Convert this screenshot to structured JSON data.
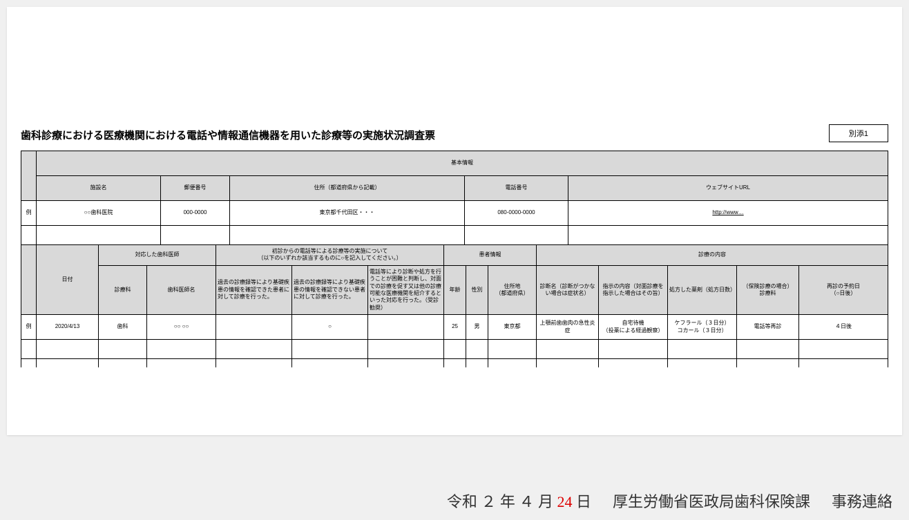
{
  "doc": {
    "title": "歯科診療における医療機関における電話や情報通信機器を用いた診療等の実施状況調査票",
    "annex": "別添1",
    "example_label": "例"
  },
  "basic": {
    "group_header": "基本情報",
    "cols": {
      "facility": "施設名",
      "postal": "郵便番号",
      "address": "住所（都道府県から記載）",
      "phone": "電話番号",
      "url": "ウェブサイトURL"
    },
    "example": {
      "facility": "○○歯科医院",
      "postal": "000-0000",
      "address": "東京都千代田区・・・",
      "phone": "080-0000-0000",
      "url": "http://www…"
    }
  },
  "detail": {
    "groups": {
      "dentist": "対応した歯科医師",
      "initial": "初診からの電話等による診療等の実施について\n（以下のいずれか該当するものに○を記入してください。）",
      "patient": "患者情報",
      "content": "診療の内容"
    },
    "cols": {
      "date": "日付",
      "department": "診療科",
      "doctor_name": "歯科医師名",
      "init1": "過去の診療録等により基礎疾患の情報を確認できた患者に対して診療を行った。",
      "init2": "過去の診療録等により基礎疾患の情報を確認できない患者に対して診療を行った。",
      "init3": "電話等により診断や処方を行うことが困難と判断し、対面での診療を促す又は他の診療可能な医療機関を紹介するといった対応を行った。（受診勧奨）",
      "age": "年齢",
      "sex": "性別",
      "residence": "住所地\n（都道府県）",
      "diagnosis": "診断名（診断がつかない場合は症状名）",
      "instruction": "指示の内容（対面診療を指示した場合はその旨）",
      "prescription": "処方した薬剤（処方日数）",
      "insurance": "（保険診療の場合）\n診療料",
      "revisit": "再診の予約日\n（○日後）"
    },
    "example": {
      "date": "2020/4/13",
      "department": "歯科",
      "doctor_name": "○○ ○○",
      "init1": "",
      "init2": "○",
      "init3": "",
      "age": "25",
      "sex": "男",
      "residence": "東京都",
      "diagnosis": "上顎前歯歯肉の急性炎症",
      "instruction": "自宅待機\n（投薬による経過観察）",
      "prescription": "ケフラール（３日分）\nコカール（３日分）",
      "insurance": "電話等再診",
      "revisit": "４日後"
    }
  },
  "footer": {
    "era": "令和",
    "year": "２",
    "year_lbl": "年",
    "month": "４",
    "month_lbl": "月",
    "day": "24",
    "day_lbl": "日",
    "org": "厚生労働省医政局歯科保険課",
    "note": "事務連絡"
  }
}
